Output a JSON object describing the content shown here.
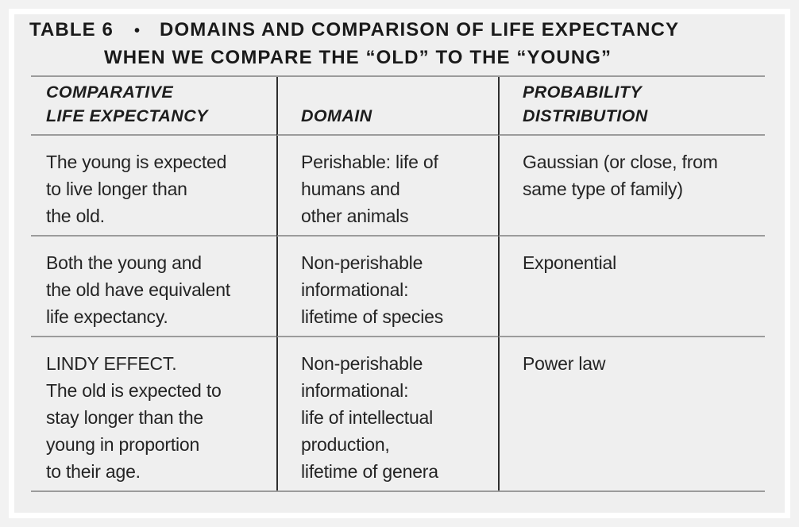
{
  "title": {
    "table_label": "TABLE 6",
    "bullet": "•",
    "line1": "DOMAINS AND COMPARISON OF LIFE EXPECTANCY",
    "line2": "WHEN WE COMPARE THE “OLD” TO THE “YOUNG”"
  },
  "table": {
    "column_headers": [
      "COMPARATIVE\nLIFE EXPECTANCY",
      "DOMAIN",
      "PROBABILITY DISTRIBUTION"
    ],
    "rows": [
      {
        "comparative_life_expectancy": "The young is expected\nto live longer than\nthe old.",
        "domain": "Perishable: life of\nhumans and\nother animals",
        "probability_distribution": "Gaussian (or close, from\nsame type of family)"
      },
      {
        "comparative_life_expectancy": "Both the young and\nthe old have equivalent\nlife expectancy.",
        "domain": "Non-perishable\ninformational:\nlifetime of species",
        "probability_distribution": "Exponential"
      },
      {
        "comparative_life_expectancy": "LINDY EFFECT.\nThe old is expected to\nstay longer than the\nyoung in proportion\nto their age.",
        "domain": "Non-perishable\ninformational:\nlife of intellectual\nproduction,\nlifetime of genera",
        "probability_distribution": "Power law"
      }
    ]
  },
  "colors": {
    "page_background": "#f2f2f2",
    "panel_background": "#efefef",
    "frame_border": "#ffffff",
    "text": "#242424",
    "rule_light": "#9b9b9b",
    "rule_dark": "#2e2e2e"
  }
}
